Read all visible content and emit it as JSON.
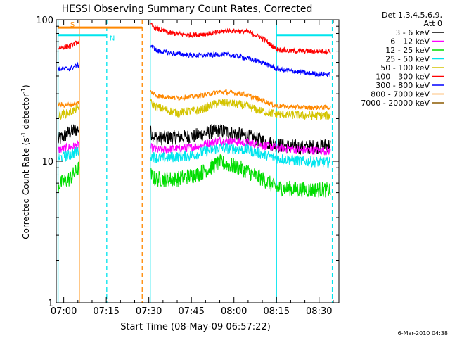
{
  "chart_data": {
    "type": "line",
    "title": "HESSI Observing Summary Count Rates, Corrected",
    "xlabel": "Start Time (08-May-09 06:57:22)",
    "ylabel_main": "Corrected Count Rate (s",
    "ylabel_sup1": "-1",
    "ylabel_mid": " detector",
    "ylabel_sup2": "-1",
    "ylabel_end": ")",
    "y_scale": "log",
    "ylim": [
      1,
      100
    ],
    "xlim": [
      "06:57:22",
      "08:37:00"
    ],
    "x_ticks": [
      "07:00",
      "07:15",
      "07:30",
      "07:45",
      "08:00",
      "08:15",
      "08:30"
    ],
    "y_ticks": [
      "1",
      "10",
      "100"
    ],
    "legend": {
      "placement": "right",
      "header_line1": "Det 1,3,4,5,6,9,",
      "header_line2": "Att 0",
      "entries": [
        {
          "label": "3 - 6 keV",
          "color": "#000000"
        },
        {
          "label": "6 - 12 keV",
          "color": "#ff00ff"
        },
        {
          "label": "12 - 25 keV",
          "color": "#00dd00"
        },
        {
          "label": "25 - 50 keV",
          "color": "#00e5ee"
        },
        {
          "label": "50 - 100 keV",
          "color": "#d4c400"
        },
        {
          "label": "100 - 300 keV",
          "color": "#ff0000"
        },
        {
          "label": "300 - 800 keV",
          "color": "#0000ff"
        },
        {
          "label": "800 - 7000 keV",
          "color": "#ff8800"
        },
        {
          "label": "7000 - 20000 keV",
          "color": "#8b5a00"
        }
      ]
    },
    "flags": [
      {
        "label": "S",
        "color": "#ff8800",
        "start": "06:58:00",
        "end": "07:05:30",
        "level": 88
      },
      {
        "label": "N",
        "color": "#00e5ee",
        "start": "06:58:00",
        "end": "07:15:10",
        "level": 78
      },
      {
        "label": "",
        "color": "#ff8800",
        "start": "07:05:30",
        "end": "07:27:40",
        "level": 88
      },
      {
        "label": "",
        "color": "#00e5ee",
        "start": "08:15:00",
        "end": "08:34:40",
        "level": 78
      }
    ],
    "event_lines": [
      {
        "time": "06:58:00",
        "color": "#00e5ee",
        "style": "solid"
      },
      {
        "time": "07:05:30",
        "color": "#ff8800",
        "style": "solid"
      },
      {
        "time": "07:15:10",
        "color": "#00e5ee",
        "style": "dashed"
      },
      {
        "time": "07:27:40",
        "color": "#ff8800",
        "style": "dashed"
      },
      {
        "time": "07:30:30",
        "color": "#00e5ee",
        "style": "solid"
      },
      {
        "time": "08:15:00",
        "color": "#00e5ee",
        "style": "solid"
      },
      {
        "time": "08:34:40",
        "color": "#00e5ee",
        "style": "dashed"
      }
    ],
    "series": [
      {
        "name": "3 - 6 keV",
        "color": "#000000",
        "points": [
          [
            "06:58:00",
            14
          ],
          [
            "07:02:00",
            16
          ],
          [
            "07:05:30",
            17
          ],
          [
            "07:30:40",
            16
          ],
          [
            "07:33:00",
            14.5
          ],
          [
            "07:45:00",
            15
          ],
          [
            "07:55:00",
            16.5
          ],
          [
            "08:05:00",
            15
          ],
          [
            "08:15:00",
            13
          ],
          [
            "08:25:00",
            12.5
          ],
          [
            "08:34:00",
            13
          ]
        ]
      },
      {
        "name": "6 - 12 keV",
        "color": "#ff00ff",
        "points": [
          [
            "06:58:00",
            12
          ],
          [
            "07:02:00",
            12.5
          ],
          [
            "07:05:30",
            13
          ],
          [
            "07:30:40",
            12.5
          ],
          [
            "07:33:00",
            12
          ],
          [
            "07:45:00",
            12.5
          ],
          [
            "07:55:00",
            14
          ],
          [
            "08:05:00",
            13.5
          ],
          [
            "08:15:00",
            12.5
          ],
          [
            "08:25:00",
            12
          ],
          [
            "08:34:00",
            11.8
          ]
        ]
      },
      {
        "name": "12 - 25 keV",
        "color": "#00dd00",
        "points": [
          [
            "06:58:00",
            6.8
          ],
          [
            "07:02:00",
            7.5
          ],
          [
            "07:05:30",
            9
          ],
          [
            "07:30:40",
            8
          ],
          [
            "07:32:00",
            7.5
          ],
          [
            "07:40:00",
            7.5
          ],
          [
            "07:48:00",
            8.2
          ],
          [
            "07:55:00",
            9.8
          ],
          [
            "08:02:00",
            9
          ],
          [
            "08:10:00",
            7.5
          ],
          [
            "08:15:00",
            6.5
          ],
          [
            "08:25:00",
            6.3
          ],
          [
            "08:34:00",
            6.3
          ]
        ]
      },
      {
        "name": "25 - 50 keV",
        "color": "#00e5ee",
        "points": [
          [
            "06:58:00",
            10.5
          ],
          [
            "07:02:00",
            11
          ],
          [
            "07:05:30",
            12
          ],
          [
            "07:30:40",
            11
          ],
          [
            "07:33:00",
            10.5
          ],
          [
            "07:45:00",
            11
          ],
          [
            "07:55:00",
            12.5
          ],
          [
            "08:05:00",
            12
          ],
          [
            "08:15:00",
            10.5
          ],
          [
            "08:25:00",
            10
          ],
          [
            "08:34:00",
            9.8
          ]
        ]
      },
      {
        "name": "50 - 100 keV",
        "color": "#d4c400",
        "points": [
          [
            "06:58:00",
            21
          ],
          [
            "07:02:00",
            22
          ],
          [
            "07:05:30",
            24
          ],
          [
            "07:30:40",
            26
          ],
          [
            "07:33:00",
            24
          ],
          [
            "07:40:00",
            22
          ],
          [
            "07:48:00",
            23
          ],
          [
            "07:55:00",
            26
          ],
          [
            "08:03:00",
            25
          ],
          [
            "08:10:00",
            22.5
          ],
          [
            "08:15:00",
            21.5
          ],
          [
            "08:25:00",
            21
          ],
          [
            "08:34:00",
            21
          ]
        ]
      },
      {
        "name": "100 - 300 keV",
        "color": "#ff0000",
        "points": [
          [
            "06:58:00",
            63
          ],
          [
            "07:02:00",
            65
          ],
          [
            "07:05:30",
            70
          ],
          [
            "07:30:40",
            92
          ],
          [
            "07:33:00",
            86
          ],
          [
            "07:38:00",
            80
          ],
          [
            "07:45:00",
            78
          ],
          [
            "07:52:00",
            80
          ],
          [
            "07:58:00",
            84
          ],
          [
            "08:05:00",
            82
          ],
          [
            "08:10:00",
            74
          ],
          [
            "08:15:00",
            62
          ],
          [
            "08:20:00",
            60
          ],
          [
            "08:34:00",
            60
          ]
        ]
      },
      {
        "name": "300 - 800 keV",
        "color": "#0000ff",
        "points": [
          [
            "06:58:00",
            45
          ],
          [
            "07:02:00",
            45
          ],
          [
            "07:05:30",
            48
          ],
          [
            "07:30:40",
            66
          ],
          [
            "07:33:00",
            60
          ],
          [
            "07:38:00",
            58
          ],
          [
            "07:45:00",
            56
          ],
          [
            "07:50:00",
            56
          ],
          [
            "07:56:00",
            57
          ],
          [
            "08:02:00",
            55
          ],
          [
            "08:10:00",
            50
          ],
          [
            "08:15:00",
            45
          ],
          [
            "08:25:00",
            42
          ],
          [
            "08:34:00",
            41
          ]
        ]
      },
      {
        "name": "800 - 7000 keV",
        "color": "#ff8800",
        "points": [
          [
            "06:58:00",
            25
          ],
          [
            "07:02:00",
            25
          ],
          [
            "07:05:30",
            26
          ],
          [
            "07:30:40",
            31
          ],
          [
            "07:33:00",
            29
          ],
          [
            "07:40:00",
            28
          ],
          [
            "07:48:00",
            29
          ],
          [
            "07:55:00",
            31
          ],
          [
            "08:03:00",
            30
          ],
          [
            "08:10:00",
            27
          ],
          [
            "08:15:00",
            24.5
          ],
          [
            "08:25:00",
            24
          ],
          [
            "08:34:00",
            24
          ]
        ]
      },
      {
        "name": "7000 - 20000 keV",
        "color": "#8b5a00",
        "points": []
      }
    ]
  },
  "footer": {
    "timestamp": "6-Mar-2010 04:38"
  }
}
